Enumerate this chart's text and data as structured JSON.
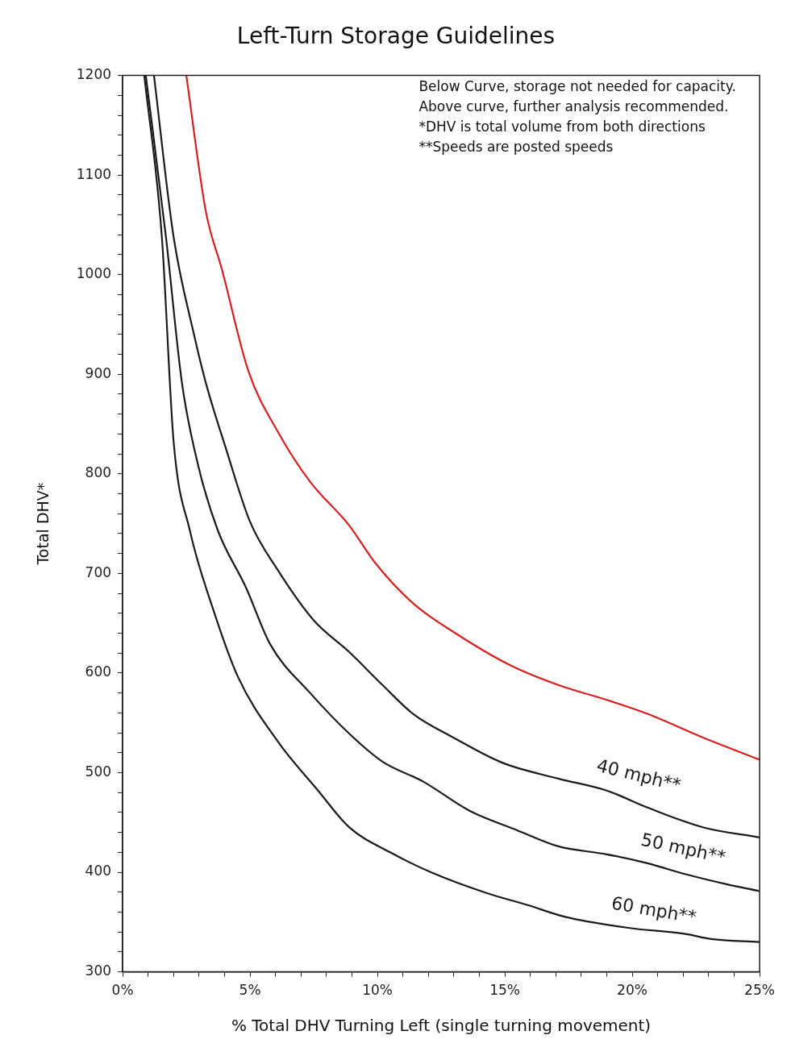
{
  "chart_data": {
    "type": "line",
    "title": "Left-Turn Storage Guidelines",
    "xlabel": "% Total DHV Turning Left (single turning movement)",
    "ylabel": "Total DHV*",
    "xlim": [
      0,
      25
    ],
    "ylim": [
      300,
      1200
    ],
    "xticks": [
      {
        "value": 0,
        "label": "0%"
      },
      {
        "value": 1,
        "label": null
      },
      {
        "value": 2,
        "label": null
      },
      {
        "value": 3,
        "label": null
      },
      {
        "value": 4,
        "label": null
      },
      {
        "value": 5,
        "label": "5%"
      },
      {
        "value": 6,
        "label": null
      },
      {
        "value": 7,
        "label": null
      },
      {
        "value": 8,
        "label": null
      },
      {
        "value": 9,
        "label": null
      },
      {
        "value": 10,
        "label": "10%"
      },
      {
        "value": 11,
        "label": null
      },
      {
        "value": 12,
        "label": null
      },
      {
        "value": 13,
        "label": null
      },
      {
        "value": 14,
        "label": null
      },
      {
        "value": 15,
        "label": "15%"
      },
      {
        "value": 16,
        "label": null
      },
      {
        "value": 17,
        "label": null
      },
      {
        "value": 18,
        "label": null
      },
      {
        "value": 19,
        "label": null
      },
      {
        "value": 20,
        "label": "20%"
      },
      {
        "value": 21,
        "label": null
      },
      {
        "value": 22,
        "label": null
      },
      {
        "value": 23,
        "label": null
      },
      {
        "value": 24,
        "label": null
      },
      {
        "value": 25,
        "label": "25%"
      }
    ],
    "yticks": [
      300,
      {
        "value": 320,
        "label": null
      },
      {
        "value": 340,
        "label": null
      },
      {
        "value": 360,
        "label": null
      },
      {
        "value": 380,
        "label": null
      },
      400,
      {
        "value": 420,
        "label": null
      },
      {
        "value": 440,
        "label": null
      },
      {
        "value": 460,
        "label": null
      },
      {
        "value": 480,
        "label": null
      },
      500,
      {
        "value": 520,
        "label": null
      },
      {
        "value": 540,
        "label": null
      },
      {
        "value": 560,
        "label": null
      },
      {
        "value": 580,
        "label": null
      },
      600,
      {
        "value": 620,
        "label": null
      },
      {
        "value": 640,
        "label": null
      },
      {
        "value": 660,
        "label": null
      },
      {
        "value": 680,
        "label": null
      },
      700,
      {
        "value": 720,
        "label": null
      },
      {
        "value": 740,
        "label": null
      },
      {
        "value": 760,
        "label": null
      },
      {
        "value": 780,
        "label": null
      },
      800,
      {
        "value": 820,
        "label": null
      },
      {
        "value": 840,
        "label": null
      },
      {
        "value": 860,
        "label": null
      },
      {
        "value": 880,
        "label": null
      },
      900,
      {
        "value": 920,
        "label": null
      },
      {
        "value": 940,
        "label": null
      },
      {
        "value": 960,
        "label": null
      },
      {
        "value": 980,
        "label": null
      },
      1000,
      {
        "value": 1020,
        "label": null
      },
      {
        "value": 1040,
        "label": null
      },
      {
        "value": 1060,
        "label": null
      },
      {
        "value": 1080,
        "label": null
      },
      1100,
      {
        "value": 1120,
        "label": null
      },
      {
        "value": 1140,
        "label": null
      },
      {
        "value": 1160,
        "label": null
      },
      {
        "value": 1180,
        "label": null
      },
      1200
    ],
    "grid": false,
    "legend": false,
    "marker": "none",
    "line_style": "solid",
    "annotations": [
      "Below Curve, storage not needed for capacity.",
      "Above curve, further analysis recommended.",
      "*DHV is total volume from both directions",
      "**Speeds are posted speeds"
    ],
    "series": [
      {
        "color": "#d42020",
        "x": [
          2.5,
          3.27,
          3.9,
          4.94,
          6.1,
          7.36,
          8.9,
          9.9,
          11.4,
          13.0,
          15.2,
          17.1,
          19.0,
          20.6,
          22.8,
          25
        ],
        "values": [
          1200,
          1063,
          1005,
          903,
          842,
          792,
          748,
          711,
          670,
          641,
          608,
          588,
          573,
          559,
          535,
          513
        ]
      },
      {
        "name": "40 mph**",
        "color": "#1a1a1a",
        "x": [
          1.23,
          2.0,
          2.8,
          3.27,
          4.06,
          5.0,
          6.1,
          7.5,
          8.9,
          10.2,
          11.4,
          13.0,
          14.9,
          17.1,
          19.0,
          20.6,
          22.8,
          25
        ],
        "values": [
          1200,
          1038,
          940,
          891,
          825,
          752,
          703,
          653,
          621,
          588,
          559,
          535,
          510,
          494,
          482,
          465,
          445,
          435
        ]
      },
      {
        "name": "50 mph**",
        "color": "#1a1a1a",
        "x": [
          0.91,
          1.7,
          2.33,
          2.96,
          3.74,
          4.84,
          5.79,
          7.36,
          8.9,
          10.2,
          11.8,
          13.6,
          15.5,
          17.1,
          19.0,
          20.6,
          22.1,
          23.7,
          25
        ],
        "values": [
          1200,
          1038,
          891,
          809,
          743,
          686,
          629,
          580,
          539,
          511,
          491,
          462,
          442,
          426,
          418,
          409,
          398,
          388,
          381
        ]
      },
      {
        "name": "60 mph**",
        "color": "#1a1a1a",
        "x": [
          0.85,
          1.54,
          2.0,
          2.64,
          3.58,
          4.53,
          6.1,
          7.67,
          8.9,
          10.5,
          12.1,
          14.3,
          15.9,
          17.4,
          19.9,
          22.1,
          23.1,
          25
        ],
        "values": [
          1200,
          1038,
          833,
          743,
          662,
          596,
          531,
          482,
          445,
          420,
          400,
          379,
          367,
          355,
          344,
          338,
          333,
          330
        ]
      }
    ]
  }
}
